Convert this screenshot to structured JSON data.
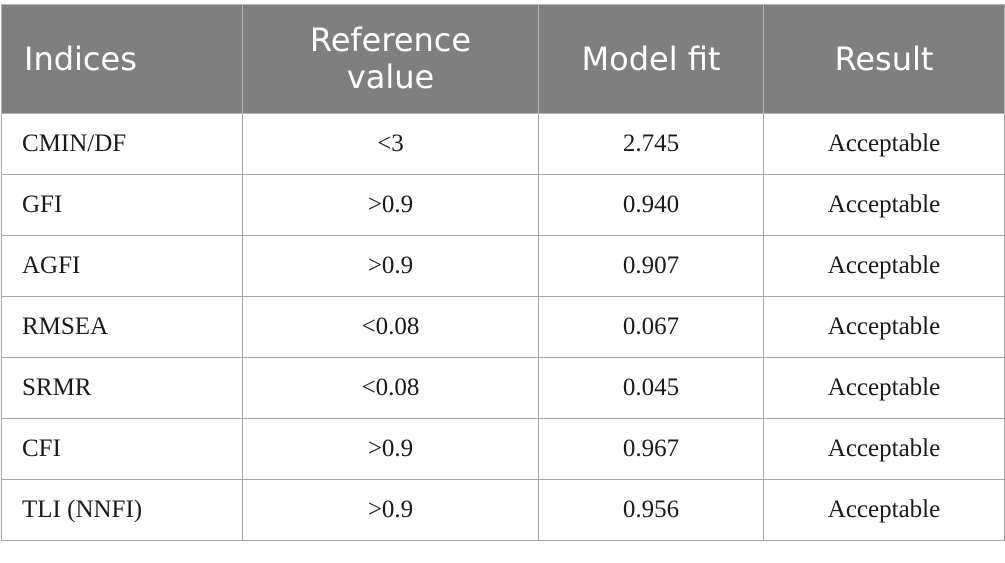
{
  "table": {
    "headers": [
      "Indices",
      "Reference value",
      "Model fit",
      "Result"
    ],
    "rows": [
      [
        "CMIN/DF",
        "<3",
        "2.745",
        "Acceptable"
      ],
      [
        "GFI",
        ">0.9",
        "0.940",
        "Acceptable"
      ],
      [
        "AGFI",
        ">0.9",
        "0.907",
        "Acceptable"
      ],
      [
        "RMSEA",
        "<0.08",
        "0.067",
        "Acceptable"
      ],
      [
        "SRMR",
        "<0.08",
        "0.045",
        "Acceptable"
      ],
      [
        "CFI",
        ">0.9",
        "0.967",
        "Acceptable"
      ],
      [
        "TLI (NNFI)",
        ">0.9",
        "0.956",
        "Acceptable"
      ]
    ]
  },
  "colors": {
    "header_background": "#7f7f7f",
    "header_text": "#ffffff",
    "border": "#a6a6a6"
  }
}
